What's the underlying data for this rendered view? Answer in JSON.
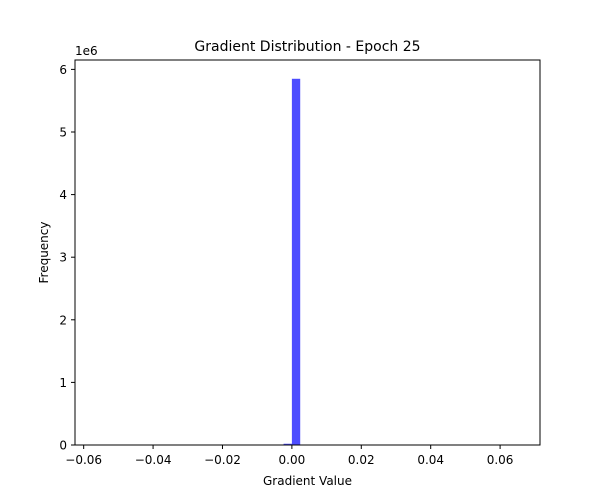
{
  "chart_data": {
    "type": "bar",
    "title": "Gradient Distribution - Epoch 25",
    "xlabel": "Gradient Value",
    "ylabel": "Frequency",
    "y_offset_label": "1e6",
    "xlim": [
      -0.0625,
      0.0715
    ],
    "ylim": [
      0,
      6.15
    ],
    "x_ticks": [
      -0.06,
      -0.04,
      -0.02,
      0.0,
      0.02,
      0.04,
      0.06
    ],
    "x_tick_labels": [
      "−0.06",
      "−0.04",
      "−0.02",
      "0.00",
      "0.02",
      "0.04",
      "0.06"
    ],
    "y_ticks": [
      0,
      1,
      2,
      3,
      4,
      5,
      6
    ],
    "y_tick_labels": [
      "0",
      "1",
      "2",
      "3",
      "4",
      "5",
      "6"
    ],
    "grid": false,
    "bar_color": "#0000ff",
    "bar_opacity": 0.7,
    "series": [
      {
        "bins": [
          {
            "x0": -0.0024,
            "x1": 0.0,
            "value": 0.02
          },
          {
            "x0": 0.0,
            "x1": 0.0024,
            "value": 5.85
          }
        ]
      }
    ]
  }
}
